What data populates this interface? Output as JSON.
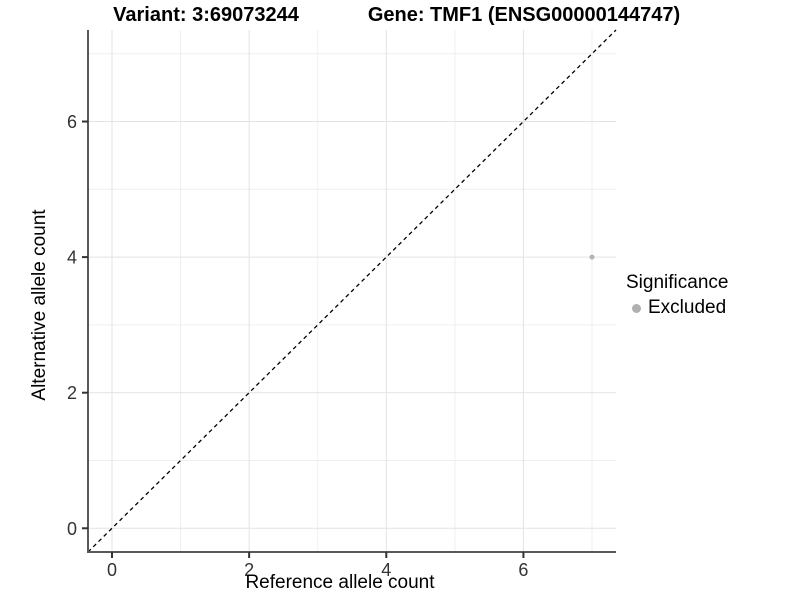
{
  "chart_data": {
    "type": "scatter",
    "title_variant": "Variant: 3:69073244",
    "title_gene": "Gene: TMF1 (ENSG00000144747)",
    "xlabel": "Reference allele count",
    "ylabel": "Alternative allele count",
    "xlim": [
      -0.35,
      7.35
    ],
    "ylim": [
      -0.35,
      7.35
    ],
    "x_ticks": [
      0,
      2,
      4,
      6
    ],
    "y_ticks": [
      0,
      2,
      4,
      6
    ],
    "x_minor_ticks": [
      1,
      3,
      5,
      7
    ],
    "y_minor_ticks": [
      1,
      3,
      5,
      7
    ],
    "identity_line": {
      "shown": true,
      "style": "dashed",
      "color": "#000000"
    },
    "points": [
      {
        "x": 7,
        "y": 4,
        "significance": "Excluded"
      }
    ],
    "legend": {
      "title": "Significance",
      "position": "right",
      "items": [
        {
          "label": "Excluded",
          "color": "#b0b0b0"
        }
      ]
    },
    "colors": {
      "point": "#b3b3b3",
      "grid_major": "#e3e3e3",
      "grid_minor": "#efefef",
      "axis_line": "#595959",
      "tick_mark": "#333333",
      "tick_label": "#333333",
      "background": "#ffffff"
    }
  }
}
